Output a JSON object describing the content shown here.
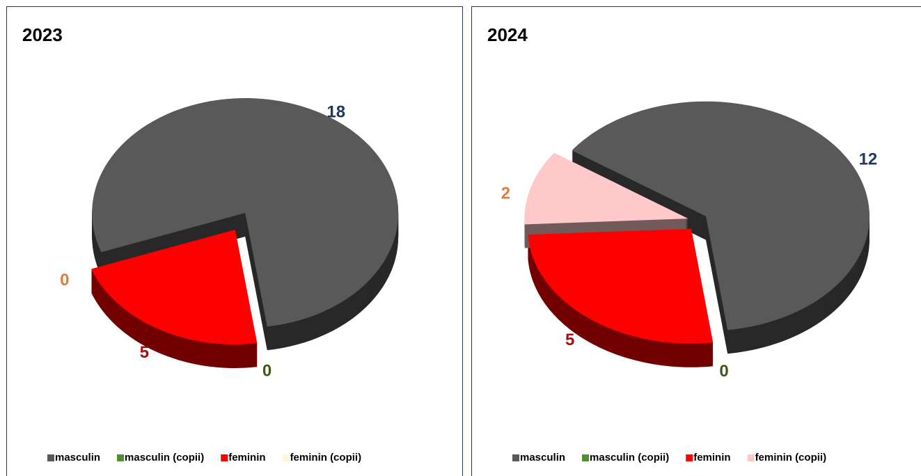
{
  "chart_data": [
    {
      "type": "pie",
      "title": "2023",
      "categories": [
        "masculin",
        "masculin (copii)",
        "feminin",
        "feminin (copii)"
      ],
      "values": [
        18,
        0,
        5,
        0
      ],
      "colors": [
        "#595959",
        "#4e8f2f",
        "#ff0000",
        "#fdf8d8"
      ],
      "label_colors": [
        "#1f3864",
        "#3a5a1c",
        "#a50f0f",
        "#e07b39"
      ],
      "legend": "bottom"
    },
    {
      "type": "pie",
      "title": "2024",
      "categories": [
        "masculin",
        "masculin (copii)",
        "feminin",
        "feminin (copii)"
      ],
      "values": [
        12,
        0,
        5,
        2
      ],
      "colors": [
        "#595959",
        "#4e8f2f",
        "#ff0000",
        "#ffc9c9"
      ],
      "label_colors": [
        "#1f3864",
        "#3a5a1c",
        "#a50f0f",
        "#e07b39"
      ],
      "legend": "bottom"
    }
  ]
}
